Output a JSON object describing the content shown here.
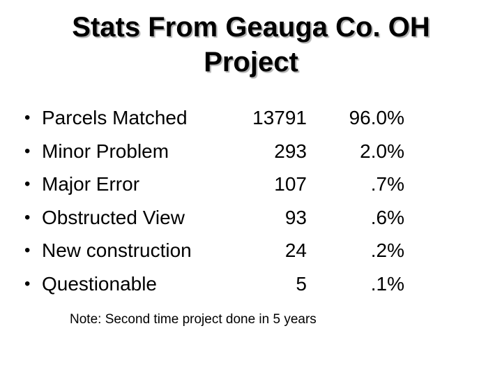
{
  "slide": {
    "title_line1": "Stats From Geauga Co. OH",
    "title_line2": "Project",
    "bullet_char": "•",
    "rows": [
      {
        "label": "Parcels Matched",
        "count": "13791",
        "pct": "96.0%"
      },
      {
        "label": "Minor Problem",
        "count": "293",
        "pct": "2.0%"
      },
      {
        "label": "Major Error",
        "count": "107",
        "pct": ".7%"
      },
      {
        "label": "Obstructed View",
        "count": "93",
        "pct": ".6%"
      },
      {
        "label": "New construction",
        "count": "24",
        "pct": ".2%"
      },
      {
        "label": "Questionable",
        "count": "5",
        "pct": ".1%"
      }
    ],
    "note": "Note: Second time project done in 5 years",
    "colors": {
      "background": "#ffffff",
      "text": "#000000",
      "shadow": "#b0b0b0"
    }
  }
}
